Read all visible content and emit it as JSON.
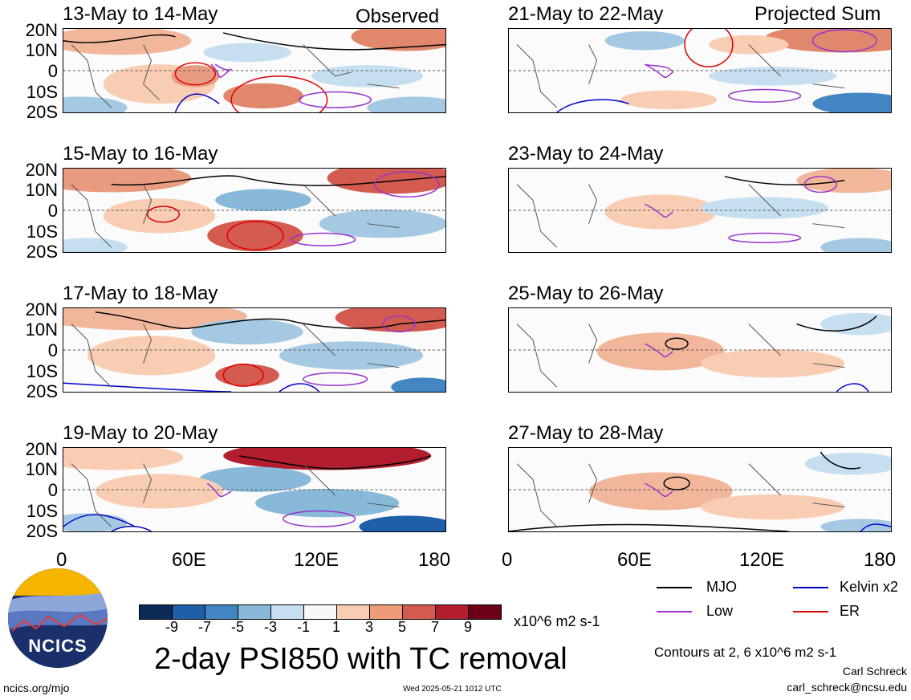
{
  "panels_left": [
    {
      "title": "13-May to 14-May",
      "tag": "Observed"
    },
    {
      "title": "15-May to 16-May",
      "tag": ""
    },
    {
      "title": "17-May to 18-May",
      "tag": ""
    },
    {
      "title": "19-May to 20-May",
      "tag": ""
    }
  ],
  "panels_right": [
    {
      "title": "21-May to 22-May",
      "tag": "Projected Sum"
    },
    {
      "title": "23-May to 24-May",
      "tag": ""
    },
    {
      "title": "25-May to 26-May",
      "tag": ""
    },
    {
      "title": "27-May to 28-May",
      "tag": ""
    }
  ],
  "y_ticks": [
    "20N",
    "10N",
    "0",
    "10S",
    "20S"
  ],
  "x_ticks": [
    "0",
    "60E",
    "120E",
    "180"
  ],
  "legend": {
    "mjo": {
      "label": "MJO",
      "color": "#000000"
    },
    "kelvin": {
      "label": "Kelvin x2",
      "color": "#0000cc"
    },
    "low": {
      "label": "Low",
      "color": "#9933cc"
    },
    "er": {
      "label": "ER",
      "color": "#dd0000"
    }
  },
  "colorbar": {
    "labels": [
      "-9",
      "-7",
      "-5",
      "-3",
      "-1",
      "1",
      "3",
      "5",
      "7",
      "9"
    ],
    "colors": [
      "#0b2a55",
      "#1f5fa8",
      "#4287c3",
      "#88b9d9",
      "#c6dff0",
      "#f8f8f8",
      "#f8cdb3",
      "#ed9b78",
      "#d35b4f",
      "#b21e2f",
      "#6b0016"
    ],
    "units": "x10^6 m2 s-1"
  },
  "main_title": "2-day PSI850 with TC removal",
  "contours_note": "Contours at 2, 6 x10^6 m2 s-1",
  "author": "Carl Schreck",
  "email": "carl_schreck@ncsu.edu",
  "site": "ncics.org/mjo",
  "timestamp": "Wed 2025-05-21 1012 UTC",
  "logo_text": "NCICS"
}
